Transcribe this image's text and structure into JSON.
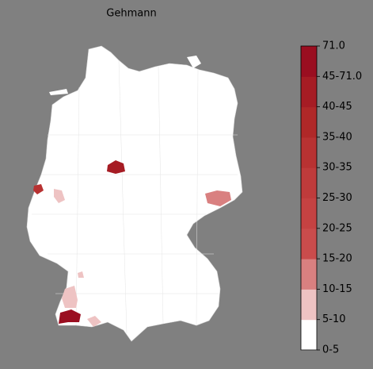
{
  "title": "Gehmann",
  "colorbar": {
    "labels": [
      "0-5",
      "5-10",
      "10-15",
      "15-20",
      "20-25",
      "25-30",
      "30-35",
      "35-40",
      "40-45",
      "45-71.0",
      "71.0"
    ],
    "colors": [
      "#ffffff",
      "#eec3c3",
      "#d98080",
      "#ca4c4c",
      "#c54242",
      "#bf3b3b",
      "#b83232",
      "#b02828",
      "#a61c24",
      "#9a0e20"
    ]
  }
}
